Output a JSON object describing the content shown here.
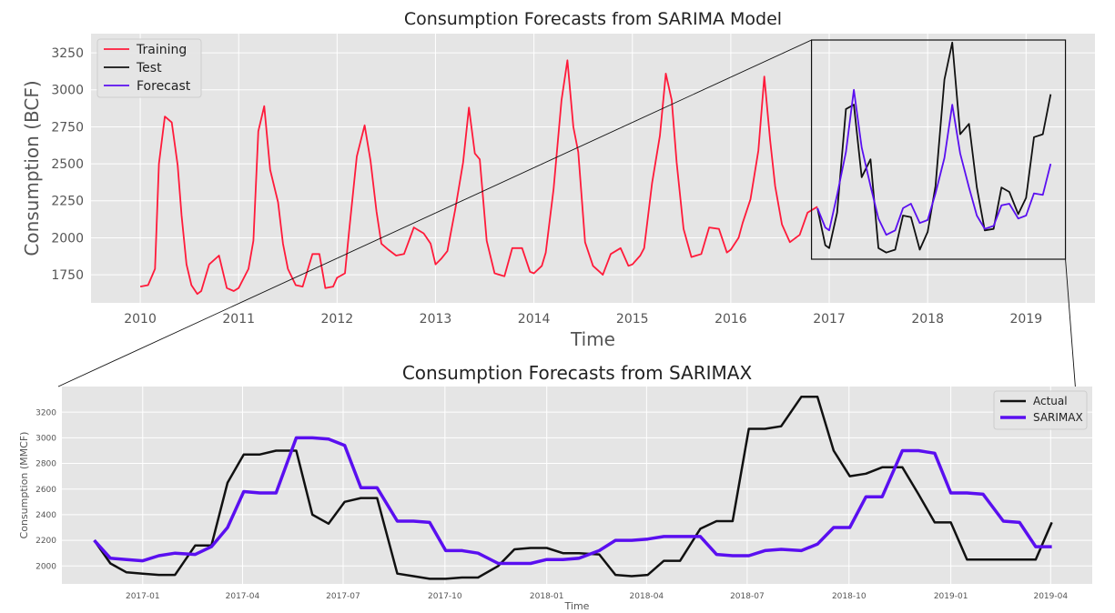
{
  "colors": {
    "panel_bg": "#e5e5e5",
    "grid": "#ffffff",
    "training": "#ff1a3a",
    "test": "#111111",
    "forecast": "#5a0ff0",
    "tick_text": "#555555",
    "label_text": "#555555",
    "title_text": "#222222"
  },
  "chart_data": [
    {
      "type": "line",
      "title": "Consumption Forecasts from SARIMA Model",
      "xlabel": "Time",
      "ylabel": "Consumption (BCF)",
      "xlim": [
        2009.5,
        2019.7
      ],
      "ylim": [
        1560,
        3380
      ],
      "x_ticks": [
        2010,
        2011,
        2012,
        2013,
        2014,
        2015,
        2016,
        2017,
        2018,
        2019
      ],
      "x_tick_labels": [
        "2010",
        "2011",
        "2012",
        "2013",
        "2014",
        "2015",
        "2016",
        "2017",
        "2018",
        "2019"
      ],
      "y_ticks": [
        1750,
        2000,
        2250,
        2500,
        2750,
        3000,
        3250
      ],
      "y_tick_labels": [
        "1750",
        "2000",
        "2250",
        "2500",
        "2750",
        "3000",
        "3250"
      ],
      "grid": true,
      "legend_position": "top-left",
      "series": [
        {
          "name": "Training",
          "color_key": "training",
          "x": [
            2010.0,
            2010.08,
            2010.15,
            2010.19,
            2010.25,
            2010.32,
            2010.38,
            2010.42,
            2010.47,
            2010.52,
            2010.58,
            2010.62,
            2010.7,
            2010.8,
            2010.88,
            2010.95,
            2011.0,
            2011.1,
            2011.15,
            2011.2,
            2011.26,
            2011.32,
            2011.4,
            2011.45,
            2011.5,
            2011.58,
            2011.65,
            2011.75,
            2011.82,
            2011.88,
            2011.96,
            2012.0,
            2012.08,
            2012.12,
            2012.2,
            2012.28,
            2012.34,
            2012.4,
            2012.45,
            2012.52,
            2012.6,
            2012.68,
            2012.78,
            2012.88,
            2012.95,
            2013.0,
            2013.06,
            2013.12,
            2013.2,
            2013.28,
            2013.34,
            2013.4,
            2013.45,
            2013.52,
            2013.6,
            2013.7,
            2013.78,
            2013.88,
            2013.96,
            2014.0,
            2014.08,
            2014.12,
            2014.2,
            2014.28,
            2014.34,
            2014.4,
            2014.45,
            2014.52,
            2014.6,
            2014.7,
            2014.78,
            2014.88,
            2014.96,
            2015.0,
            2015.08,
            2015.12,
            2015.2,
            2015.28,
            2015.34,
            2015.4,
            2015.45,
            2015.52,
            2015.6,
            2015.7,
            2015.78,
            2015.88,
            2015.96,
            2016.0,
            2016.08,
            2016.12,
            2016.2,
            2016.28,
            2016.34,
            2016.4,
            2016.45,
            2016.52,
            2016.6,
            2016.7,
            2016.78,
            2016.88
          ],
          "values": [
            1670,
            1680,
            1790,
            2500,
            2820,
            2780,
            2490,
            2150,
            1820,
            1680,
            1620,
            1640,
            1820,
            1880,
            1660,
            1640,
            1660,
            1790,
            1980,
            2720,
            2890,
            2460,
            2240,
            1960,
            1790,
            1680,
            1670,
            1890,
            1890,
            1660,
            1670,
            1730,
            1760,
            2030,
            2550,
            2760,
            2520,
            2180,
            1960,
            1920,
            1880,
            1890,
            2070,
            2030,
            1960,
            1820,
            1860,
            1910,
            2190,
            2510,
            2880,
            2570,
            2530,
            1980,
            1760,
            1740,
            1930,
            1930,
            1770,
            1760,
            1810,
            1900,
            2330,
            2930,
            3200,
            2750,
            2580,
            1970,
            1810,
            1750,
            1890,
            1930,
            1810,
            1820,
            1880,
            1930,
            2370,
            2690,
            3110,
            2930,
            2510,
            2060,
            1870,
            1890,
            2070,
            2060,
            1900,
            1920,
            2000,
            2100,
            2260,
            2590,
            3090,
            2660,
            2350,
            2090,
            1970,
            2020,
            2170,
            2210
          ]
        },
        {
          "name": "Test",
          "color_key": "test",
          "x": [
            2016.88,
            2016.96,
            2017.0,
            2017.08,
            2017.17,
            2017.25,
            2017.33,
            2017.42,
            2017.5,
            2017.58,
            2017.67,
            2017.75,
            2017.83,
            2017.92,
            2018.0,
            2018.08,
            2018.17,
            2018.25,
            2018.33,
            2018.42,
            2018.5,
            2018.58,
            2018.67,
            2018.75,
            2018.83,
            2018.92,
            2019.0,
            2019.08,
            2019.17,
            2019.25
          ],
          "values": [
            2200,
            1950,
            1930,
            2170,
            2870,
            2900,
            2410,
            2530,
            1930,
            1900,
            1920,
            2150,
            2140,
            1920,
            2040,
            2350,
            3070,
            3320,
            2700,
            2770,
            2340,
            2050,
            2060,
            2340,
            2310,
            2160,
            2270,
            2680,
            2700,
            2970
          ]
        },
        {
          "name": "Forecast",
          "color_key": "forecast",
          "x": [
            2016.88,
            2016.96,
            2017.0,
            2017.08,
            2017.17,
            2017.25,
            2017.33,
            2017.42,
            2017.5,
            2017.58,
            2017.67,
            2017.75,
            2017.83,
            2017.92,
            2018.0,
            2018.08,
            2018.17,
            2018.25,
            2018.33,
            2018.42,
            2018.5,
            2018.58,
            2018.67,
            2018.75,
            2018.83,
            2018.92,
            2019.0,
            2019.08,
            2019.17,
            2019.25
          ],
          "values": [
            2200,
            2070,
            2050,
            2290,
            2580,
            3000,
            2610,
            2350,
            2130,
            2020,
            2050,
            2200,
            2230,
            2100,
            2120,
            2300,
            2540,
            2900,
            2570,
            2340,
            2150,
            2060,
            2080,
            2220,
            2230,
            2130,
            2150,
            2300,
            2290,
            2500
          ]
        }
      ]
    },
    {
      "type": "line",
      "title": "Consumption Forecasts from SARIMAX",
      "xlabel": "Time",
      "ylabel": "Consumption (MMCF)",
      "xlim": [
        2016.8,
        2019.35
      ],
      "ylim": [
        1860,
        3400
      ],
      "x_ticks": [
        2017.0,
        2017.247,
        2017.496,
        2017.748,
        2018.0,
        2018.247,
        2018.496,
        2018.748,
        2019.0,
        2019.247
      ],
      "x_tick_labels": [
        "2017-01",
        "2017-04",
        "2017-07",
        "2017-10",
        "2018-01",
        "2018-04",
        "2018-07",
        "2018-10",
        "2019-01",
        "2019-04"
      ],
      "y_ticks": [
        2000,
        2200,
        2400,
        2600,
        2800,
        3000,
        3200
      ],
      "y_tick_labels": [
        "2000",
        "2200",
        "2400",
        "2600",
        "2800",
        "3000",
        "3200"
      ],
      "grid": true,
      "legend_position": "top-right",
      "series": [
        {
          "name": "Actual",
          "color_key": "test",
          "x": [
            2016.88,
            2016.92,
            2016.96,
            2017.0,
            2017.04,
            2017.08,
            2017.13,
            2017.17,
            2017.21,
            2017.25,
            2017.29,
            2017.33,
            2017.38,
            2017.42,
            2017.46,
            2017.5,
            2017.54,
            2017.58,
            2017.63,
            2017.67,
            2017.71,
            2017.75,
            2017.79,
            2017.83,
            2017.88,
            2017.92,
            2017.96,
            2018.0,
            2018.04,
            2018.08,
            2018.13,
            2018.17,
            2018.21,
            2018.25,
            2018.29,
            2018.33,
            2018.38,
            2018.42,
            2018.46,
            2018.5,
            2018.54,
            2018.58,
            2018.63,
            2018.67,
            2018.71,
            2018.75,
            2018.79,
            2018.83,
            2018.88,
            2018.92,
            2018.96,
            2019.0,
            2019.04,
            2019.08,
            2019.13,
            2019.17,
            2019.21,
            2019.25
          ],
          "values": [
            2200,
            2020,
            1950,
            1940,
            1930,
            1930,
            2160,
            2160,
            2650,
            2870,
            2870,
            2900,
            2900,
            2400,
            2330,
            2500,
            2530,
            2530,
            1940,
            1920,
            1900,
            1900,
            1910,
            1910,
            2000,
            2130,
            2140,
            2140,
            2100,
            2100,
            2090,
            1930,
            1920,
            1930,
            2040,
            2040,
            2290,
            2350,
            2350,
            3070,
            3070,
            3090,
            3320,
            3320,
            2900,
            2700,
            2720,
            2770,
            2770,
            2560,
            2340,
            2340,
            2050,
            2050,
            2050,
            2050,
            2050,
            2340
          ]
        },
        {
          "name": "SARIMAX",
          "color_key": "forecast",
          "x": [
            2016.88,
            2016.92,
            2016.96,
            2017.0,
            2017.04,
            2017.08,
            2017.13,
            2017.17,
            2017.21,
            2017.25,
            2017.29,
            2017.33,
            2017.38,
            2017.42,
            2017.46,
            2017.5,
            2017.54,
            2017.58,
            2017.63,
            2017.67,
            2017.71,
            2017.75,
            2017.79,
            2017.83,
            2017.88,
            2017.92,
            2017.96,
            2018.0,
            2018.04,
            2018.08,
            2018.13,
            2018.17,
            2018.21,
            2018.25,
            2018.29,
            2018.33,
            2018.38,
            2018.42,
            2018.46,
            2018.5,
            2018.54,
            2018.58,
            2018.63,
            2018.67,
            2018.71,
            2018.75,
            2018.79,
            2018.83,
            2018.88,
            2018.92,
            2018.96,
            2019.0,
            2019.04,
            2019.08,
            2019.13,
            2019.17,
            2019.21,
            2019.25
          ],
          "values": [
            2200,
            2060,
            2050,
            2040,
            2080,
            2100,
            2090,
            2150,
            2300,
            2580,
            2570,
            2570,
            3000,
            3000,
            2990,
            2940,
            2610,
            2610,
            2350,
            2350,
            2340,
            2120,
            2120,
            2100,
            2020,
            2020,
            2020,
            2050,
            2050,
            2060,
            2120,
            2200,
            2200,
            2210,
            2230,
            2230,
            2230,
            2090,
            2080,
            2080,
            2120,
            2130,
            2120,
            2170,
            2300,
            2300,
            2540,
            2540,
            2900,
            2900,
            2880,
            2570,
            2570,
            2560,
            2350,
            2340,
            2150,
            2150
          ]
        }
      ]
    }
  ]
}
